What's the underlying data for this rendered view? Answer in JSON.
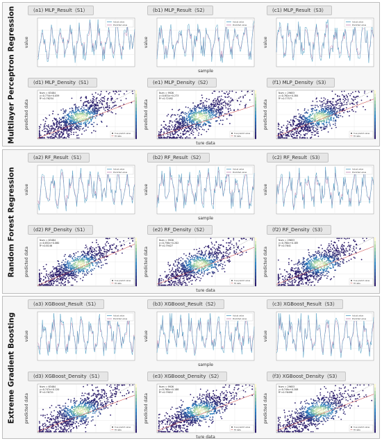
{
  "figure": {
    "sections": [
      {
        "label": "Multilayer Perceptron Regression",
        "panels": [
          {
            "title": "(a1)  MLP_Result（S1）",
            "kind": "result",
            "ylabel": "value",
            "xlabel": "",
            "legend": [
              "Actual value",
              "Predicted value"
            ]
          },
          {
            "title": "(b1)  MLP_Result（S2）",
            "kind": "result",
            "ylabel": "value",
            "xlabel": "sample",
            "legend": [
              "Actual value",
              "Predicted value"
            ]
          },
          {
            "title": "(c1)  MLP_Result（S3）",
            "kind": "result",
            "ylabel": "value",
            "xlabel": "",
            "legend": [
              "Actual value",
              "Predicted value"
            ]
          },
          {
            "title": "(d1)  MLP_Density（S1）",
            "kind": "density",
            "ylabel": "predicted data",
            "xlabel": "",
            "stats": [
              "Num = 63484",
              "y=0.774x+0.059",
              "R²=0.76254"
            ],
            "legend": [
              "true predict value",
              "Fit data"
            ]
          },
          {
            "title": "(e1)  MLP_Density（S2）",
            "kind": "density",
            "ylabel": "predicted data",
            "xlabel": "ture data",
            "stats": [
              "Num = 9926",
              "y=0.631x+0.273",
              "R²=0.72492"
            ],
            "legend": [
              "true predict value",
              "Fit data"
            ]
          },
          {
            "title": "(f1)  MLP_Density（S3）",
            "kind": "density",
            "ylabel": "predicted data",
            "xlabel": "",
            "stats": [
              "Num = 29653",
              "y=0.762x+0.284",
              "R²=0.77571"
            ],
            "legend": [
              "true predict value",
              "Fit data"
            ]
          }
        ]
      },
      {
        "label": "Random Forest Regression",
        "panels": [
          {
            "title": "(a2)  RF_Result（S1）",
            "kind": "result",
            "ylabel": "value",
            "xlabel": "",
            "legend": [
              "Actual value",
              "Predicted value"
            ]
          },
          {
            "title": "(b2)  RF_Result（S2）",
            "kind": "result",
            "ylabel": "value",
            "xlabel": "sample",
            "legend": [
              "Actual value",
              "Predicted value"
            ]
          },
          {
            "title": "(c2)  RF_Result（S3）",
            "kind": "result",
            "ylabel": "value",
            "xlabel": "",
            "legend": [
              "Actual value",
              "Predicted value"
            ]
          },
          {
            "title": "(d2)  RF_Density（S1）",
            "kind": "density",
            "ylabel": "predicted data",
            "xlabel": "",
            "stats": [
              "Num = 63484",
              "y=0.852x+0.060",
              "R²=0.8146"
            ],
            "legend": [
              "true predict value",
              "Fit data"
            ]
          },
          {
            "title": "(e2)  RF_Density（S2）",
            "kind": "density",
            "ylabel": "predicted data",
            "xlabel": "ture data",
            "stats": [
              "Num = 9926",
              "y=0.758x+0.202",
              "R²=0.79427"
            ],
            "legend": [
              "true predict value",
              "Fit data"
            ]
          },
          {
            "title": "(f2)  RF_Density（S3）",
            "kind": "density",
            "ylabel": "predicted data",
            "xlabel": "",
            "stats": [
              "Num = 29653",
              "y=0.780x+0.185",
              "R²=0.7641"
            ],
            "legend": [
              "true predict value",
              "Fit data"
            ]
          }
        ]
      },
      {
        "label": "Extreme Gradient Boosting",
        "panels": [
          {
            "title": "(a3)  XGBoost_Result（S1）",
            "kind": "result",
            "ylabel": "value",
            "xlabel": "",
            "legend": [
              "Actual value",
              "Predicted value"
            ]
          },
          {
            "title": "(b3)  XGBoost_Result（S2）",
            "kind": "result",
            "ylabel": "value",
            "xlabel": "sample",
            "legend": [
              "Actual value",
              "Predicted value"
            ]
          },
          {
            "title": "(c3)  XGBoost_Result（S3）",
            "kind": "result",
            "ylabel": "value",
            "xlabel": "",
            "legend": [
              "Actual value",
              "Predicted value"
            ]
          },
          {
            "title": "(d3)  XGBoost_Density（S1）",
            "kind": "density",
            "ylabel": "predicted data",
            "xlabel": "",
            "stats": [
              "Num = 63484",
              "y=0.747x+0.120",
              "R²=0.76721"
            ],
            "legend": [
              "true predict value",
              "Fit data"
            ]
          },
          {
            "title": "(e3)  XGBoost_Density（S2）",
            "kind": "density",
            "ylabel": "predicted data",
            "xlabel": "ture data",
            "stats": [
              "Num = 9926",
              "y=0.760x+0.188",
              "R²=0.79012"
            ],
            "legend": [
              "true predict value",
              "Fit data"
            ]
          },
          {
            "title": "(f3)  XGBoost_Density（S3）",
            "kind": "density",
            "ylabel": "predicted data",
            "xlabel": "",
            "stats": [
              "Num = 29653",
              "y=0.749x+0.208",
              "R²=0.76498"
            ],
            "legend": [
              "true predict value",
              "Fit data"
            ]
          }
        ]
      }
    ]
  },
  "colors": {
    "actual": "#4a9bc1",
    "predicted": "#c07fae",
    "density_low": "#2b1b6b",
    "density_mid": "#2a82c4",
    "density_high": "#fffbd0",
    "section_bg": "#f6f6f6"
  },
  "chart_data": [
    {
      "type": "line",
      "panels": [
        "a1",
        "b1",
        "c1",
        "a2",
        "b2",
        "c2",
        "a3",
        "b3",
        "c3"
      ],
      "series": [
        {
          "name": "Actual value"
        },
        {
          "name": "Predicted value"
        }
      ],
      "ylabel": "value",
      "xlabel": "sample",
      "grid": true,
      "legend_position": "top-right"
    },
    {
      "type": "scatter",
      "panels": [
        "d1",
        "e1",
        "f1",
        "d2",
        "e2",
        "f2",
        "d3",
        "e3",
        "f3"
      ],
      "series": [
        {
          "name": "true predict value"
        },
        {
          "name": "Fit data"
        }
      ],
      "colormap": "density",
      "ylabel": "predicted data",
      "xlabel": "ture data",
      "grid": true,
      "legend_position": "bottom-right",
      "fits": [
        {
          "panel": "d1",
          "num": 63484,
          "slope": 0.774,
          "intercept": 0.059,
          "r2": 0.76254
        },
        {
          "panel": "e1",
          "num": 9926,
          "slope": 0.631,
          "intercept": 0.273,
          "r2": 0.72492
        },
        {
          "panel": "f1",
          "num": 29653,
          "slope": 0.762,
          "intercept": 0.284,
          "r2": 0.77571
        },
        {
          "panel": "d2",
          "num": 63484,
          "slope": 0.852,
          "intercept": 0.06,
          "r2": 0.8146
        },
        {
          "panel": "e2",
          "num": 9926,
          "slope": 0.758,
          "intercept": 0.202,
          "r2": 0.79427
        },
        {
          "panel": "f2",
          "num": 29653,
          "slope": 0.78,
          "intercept": 0.185,
          "r2": 0.7641
        },
        {
          "panel": "d3",
          "num": 63484,
          "slope": 0.747,
          "intercept": 0.12,
          "r2": 0.76721
        },
        {
          "panel": "e3",
          "num": 9926,
          "slope": 0.76,
          "intercept": 0.188,
          "r2": 0.79012
        },
        {
          "panel": "f3",
          "num": 29653,
          "slope": 0.749,
          "intercept": 0.208,
          "r2": 0.76498
        }
      ]
    }
  ]
}
